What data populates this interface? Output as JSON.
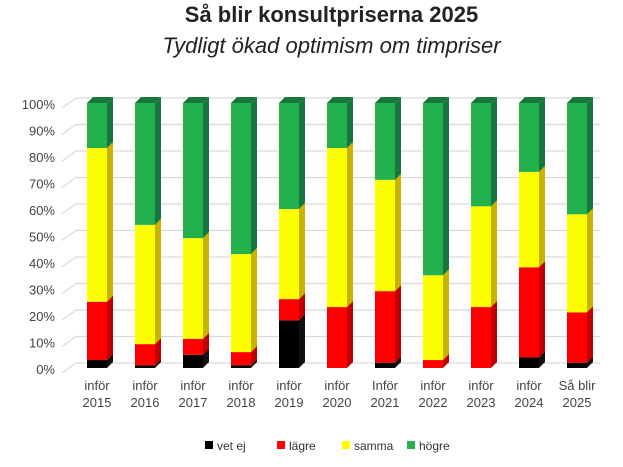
{
  "chart_data": {
    "type": "bar",
    "stacked": true,
    "title": "Så blir konsultpriserna 2025",
    "subtitle": "Tydligt ökad optimism om timpriser",
    "categories": [
      [
        "inför",
        "2015"
      ],
      [
        "inför",
        "2016"
      ],
      [
        "inför",
        "2017"
      ],
      [
        "inför",
        "2018"
      ],
      [
        "inför",
        "2019"
      ],
      [
        "inför",
        "2020"
      ],
      [
        "Inför",
        "2021"
      ],
      [
        "inför",
        "2022"
      ],
      [
        "inför",
        "2023"
      ],
      [
        "inför",
        "2024"
      ],
      [
        "Så blir",
        "2025"
      ]
    ],
    "series": [
      {
        "name": "vet ej",
        "color": "#000000",
        "side": "#111111",
        "values": [
          3,
          1,
          5,
          1,
          18,
          0,
          2,
          0,
          0,
          4,
          2
        ]
      },
      {
        "name": "lägre",
        "color": "#ff0000",
        "side": "#c00000",
        "values": [
          22,
          8,
          6,
          5,
          8,
          23,
          27,
          3,
          23,
          34,
          19
        ]
      },
      {
        "name": "samma",
        "color": "#ffff00",
        "side": "#c8b400",
        "values": [
          58,
          45,
          38,
          37,
          34,
          60,
          42,
          32,
          38,
          36,
          37
        ]
      },
      {
        "name": "högre",
        "color": "#22b14c",
        "side": "#17773a",
        "values": [
          17,
          46,
          51,
          57,
          40,
          17,
          29,
          65,
          39,
          26,
          42
        ]
      }
    ],
    "yticks": [
      "0%",
      "10%",
      "20%",
      "30%",
      "40%",
      "50%",
      "60%",
      "70%",
      "80%",
      "90%",
      "100%"
    ],
    "ylim": [
      0,
      100
    ],
    "grid": true,
    "legend": "bottom"
  }
}
